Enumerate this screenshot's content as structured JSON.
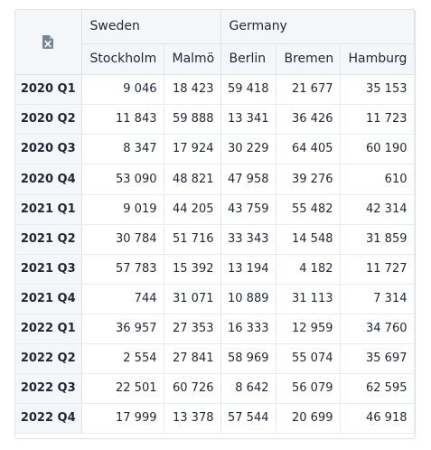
{
  "table": {
    "corner_icon": "excel-file-icon",
    "groups": [
      {
        "label": "Sweden"
      },
      {
        "label": "Germany"
      }
    ],
    "columns": [
      "Stockholm",
      "Malmö",
      "Berlin",
      "Bremen",
      "Hamburg"
    ],
    "rows": [
      {
        "label": "2020 Q1",
        "values": [
          "9 046",
          "18 423",
          "59 418",
          "21 677",
          "35 153"
        ]
      },
      {
        "label": "2020 Q2",
        "values": [
          "11 843",
          "59 888",
          "13 341",
          "36 426",
          "11 723"
        ]
      },
      {
        "label": "2020 Q3",
        "values": [
          "8 347",
          "17 924",
          "30 229",
          "64 405",
          "60 190"
        ]
      },
      {
        "label": "2020 Q4",
        "values": [
          "53 090",
          "48 821",
          "47 958",
          "39 276",
          "610"
        ]
      },
      {
        "label": "2021 Q1",
        "values": [
          "9 019",
          "44 205",
          "43 759",
          "55 482",
          "42 314"
        ]
      },
      {
        "label": "2021 Q2",
        "values": [
          "30 784",
          "51 716",
          "33 343",
          "14 548",
          "31 859"
        ]
      },
      {
        "label": "2021 Q3",
        "values": [
          "57 783",
          "15 392",
          "13 194",
          "4 182",
          "11 727"
        ]
      },
      {
        "label": "2021 Q4",
        "values": [
          "744",
          "31 071",
          "10 889",
          "31 113",
          "7 314"
        ]
      },
      {
        "label": "2022 Q1",
        "values": [
          "36 957",
          "27 353",
          "16 333",
          "12 959",
          "34 760"
        ]
      },
      {
        "label": "2022 Q2",
        "values": [
          "2 554",
          "27 841",
          "58 969",
          "55 074",
          "35 697"
        ]
      },
      {
        "label": "2022 Q3",
        "values": [
          "22 501",
          "60 726",
          "8 642",
          "56 079",
          "62 595"
        ]
      },
      {
        "label": "2022 Q4",
        "values": [
          "17 999",
          "13 378",
          "57 544",
          "20 699",
          "46 918"
        ]
      }
    ]
  },
  "colors": {
    "header_bg": "#f4f6fa",
    "border": "#dfe3e8",
    "icon": "#7a8594"
  }
}
